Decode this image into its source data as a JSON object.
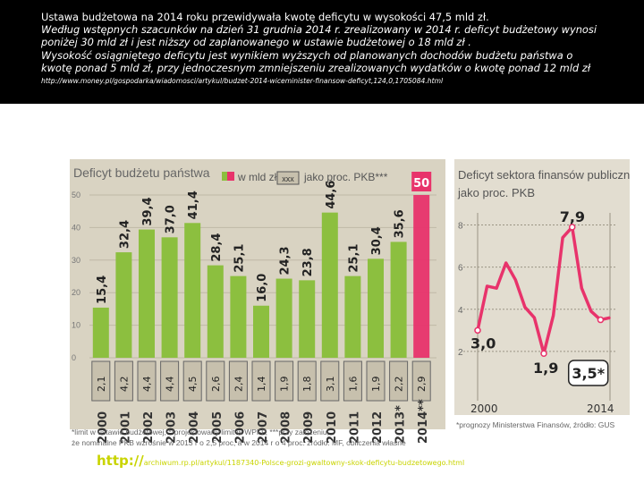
{
  "header": {
    "line1": "Ustawa budżetowa na 2014 roku przewidywała kwotę deficytu w wysokości 47,5 mld zł.",
    "line2": "Według wstępnych szacunków na dzień 31 grudnia 2014 r. zrealizowany w 2014 r. deficyt budżetowy wynosi",
    "line3": "poniżej 30 mld zł i jest niższy od zaplanowanego w ustawie budżetowej o 18 mld zł .",
    "line4": "Wysokość osiągniętego deficytu jest wynikiem wyższych od planowanych dochodów budżetu państwa o",
    "line5": "kwotę ponad 5 mld zł, przy jednoczesnym zmniejszeniu zrealizowanych wydatków o kwotę ponad 12 mld zł",
    "source_url": "http://www.money.pl/gospodarka/wiadomosci/artykul/budzet-2014-wiceminister-finansow-deficyt,124,0,1705084.html"
  },
  "chart_data": [
    {
      "type": "bar",
      "title": "Deficyt budżetu państwa",
      "legend": {
        "bar_label": "w mld zł",
        "box_text": "xxx",
        "box_label": "jako proc. PKB***"
      },
      "ylim": [
        0,
        50
      ],
      "yticks": [
        "0",
        "10",
        "20",
        "30",
        "40",
        "50"
      ],
      "categories": [
        "2000",
        "2001",
        "2002",
        "2003",
        "2004",
        "2005",
        "2006",
        "2007",
        "2008",
        "2009",
        "2010",
        "2011",
        "2012",
        "2013*",
        "2014**"
      ],
      "value_labels": [
        "15,4",
        "32,4",
        "39,4",
        "37,0",
        "41,4",
        "28,4",
        "25,1",
        "16,0",
        "24,3",
        "23,8",
        "44,6",
        "25,1",
        "30,4",
        "35,6",
        "50"
      ],
      "values": [
        15.4,
        32.4,
        39.4,
        37.0,
        41.4,
        28.4,
        25.1,
        16.0,
        24.3,
        23.8,
        44.6,
        25.1,
        30.4,
        35.6,
        50
      ],
      "pct_gdp_labels": [
        "2,1",
        "4,2",
        "4,4",
        "4,4",
        "4,5",
        "2,6",
        "2,4",
        "1,4",
        "1,9",
        "1,8",
        "3,1",
        "1,6",
        "1,9",
        "2,2",
        "2,9"
      ],
      "colors": {
        "bar": "#8cbf3f",
        "highlight_bar": "#e8336b",
        "panel": "#d9d3c2",
        "pct_box": "#c7c0ad"
      },
      "footnotes": [
        "*limit w ustawie budżetowej, **projektowany limit w WPFP, ***przy założeniu,",
        "że nominalne PKB wzrośnie w 2013 r o 2,5 proc, a w 2014 r o 4 proc. źródło: MF, obliczenia własne"
      ]
    },
    {
      "type": "line",
      "title_line1": "Deficyt sektora finansów publicznych,",
      "title_line2": "jako proc. PKB",
      "x": [
        2000,
        2001,
        2002,
        2003,
        2004,
        2005,
        2006,
        2007,
        2008,
        2009,
        2010,
        2011,
        2012,
        2013,
        2014
      ],
      "values": [
        3.0,
        5.1,
        5.0,
        6.2,
        5.4,
        4.1,
        3.6,
        1.9,
        3.7,
        7.4,
        7.9,
        5.0,
        3.9,
        3.5,
        3.6
      ],
      "xlim": [
        2000,
        2014
      ],
      "ylim": [
        0,
        9
      ],
      "yticks": [
        "2",
        "4",
        "6",
        "8"
      ],
      "xtick_labels": [
        "2000",
        "2014"
      ],
      "annotations": [
        "3,0",
        "1,9",
        "7,9",
        "3,5*"
      ],
      "footnote": "*prognozy Ministerstwa Finansów, źródło: GUS",
      "colors": {
        "line": "#e8336b",
        "panel": "#e2ddd0"
      }
    }
  ],
  "footer": {
    "prefix": "http://",
    "url_rest": "archiwum.rp.pl/artykul/1187340-Polsce-grozi-gwaltowny-skok-deficytu-budzetowego.html"
  }
}
